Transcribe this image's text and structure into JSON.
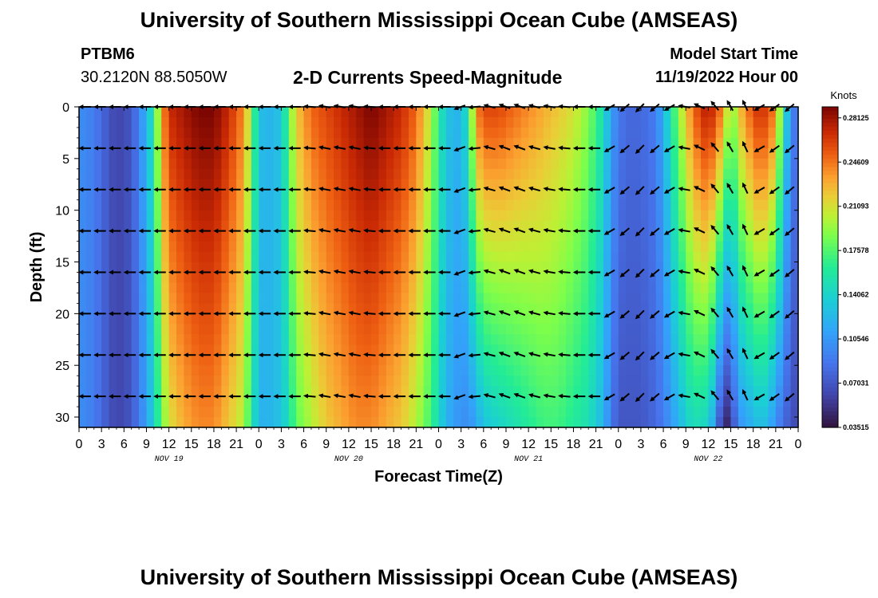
{
  "header": {
    "title": "University of Southern Mississippi Ocean Cube (AMSEAS)",
    "station_id": "PTBM6",
    "station_coords": "30.2120N  88.5050W",
    "chart_title": "2-D Currents Speed-Magnitude",
    "model_start_label": "Model Start Time",
    "model_start_value": "11/19/2022 Hour 00"
  },
  "footer": {
    "title": "University of Southern Mississippi Ocean Cube (AMSEAS)"
  },
  "chart_data": {
    "type": "heatmap",
    "title": "2-D Currents Speed-Magnitude",
    "xlabel": "Forecast Time(Z)",
    "ylabel": "Depth (ft)",
    "xlim": [
      0,
      96
    ],
    "ylim": [
      31,
      0
    ],
    "x_tick_hours": [
      0,
      3,
      6,
      9,
      12,
      15,
      18,
      21,
      24,
      27,
      30,
      33,
      36,
      39,
      42,
      45,
      48,
      51,
      54,
      57,
      60,
      63,
      66,
      69,
      72,
      75,
      78,
      81,
      84,
      87,
      90,
      93,
      96
    ],
    "x_tick_labels": [
      "0",
      "3",
      "6",
      "9",
      "12",
      "15",
      "18",
      "21",
      "0",
      "3",
      "6",
      "9",
      "12",
      "15",
      "18",
      "21",
      "0",
      "3",
      "6",
      "9",
      "12",
      "15",
      "18",
      "21",
      "0",
      "3",
      "6",
      "9",
      "12",
      "15",
      "18",
      "21",
      "0"
    ],
    "day_labels": [
      {
        "hour": 12,
        "label": "NOV 19"
      },
      {
        "hour": 36,
        "label": "NOV 20"
      },
      {
        "hour": 60,
        "label": "NOV 21"
      },
      {
        "hour": 84,
        "label": "NOV 22"
      }
    ],
    "y_ticks": [
      0,
      5,
      10,
      15,
      20,
      25,
      30
    ],
    "colorbar": {
      "unit": "Knots",
      "min": 0.03515,
      "max": 0.29,
      "tick_values": [
        0.28125,
        0.24609,
        0.21093,
        0.17578,
        0.14062,
        0.10546,
        0.07031,
        0.03515
      ],
      "tick_labels": [
        "0.28125",
        "0.24609",
        "0.21093",
        "0.17578",
        "0.14062",
        "0.10546",
        "0.07031",
        "0.03515"
      ]
    },
    "speed_profile": {
      "hours": [
        0,
        2,
        4,
        5,
        7,
        9,
        10,
        11,
        12,
        14,
        16,
        18,
        20,
        22,
        23,
        24,
        25,
        27,
        28,
        29,
        31,
        33,
        35,
        37,
        39,
        41,
        43,
        45,
        47,
        49,
        51,
        52,
        53,
        54,
        56,
        58,
        60,
        62,
        64,
        66,
        68,
        70,
        71,
        72,
        73,
        75,
        77,
        78,
        80,
        82,
        84,
        85,
        86,
        87,
        88,
        90,
        91,
        92,
        93,
        94,
        95,
        96
      ],
      "surface": [
        0.1,
        0.09,
        0.07,
        0.06,
        0.07,
        0.12,
        0.16,
        0.23,
        0.27,
        0.28,
        0.29,
        0.29,
        0.27,
        0.24,
        0.19,
        0.13,
        0.12,
        0.13,
        0.18,
        0.22,
        0.25,
        0.26,
        0.27,
        0.28,
        0.29,
        0.28,
        0.27,
        0.25,
        0.2,
        0.13,
        0.12,
        0.16,
        0.24,
        0.26,
        0.26,
        0.25,
        0.24,
        0.23,
        0.22,
        0.21,
        0.19,
        0.15,
        0.11,
        0.09,
        0.08,
        0.08,
        0.09,
        0.12,
        0.19,
        0.25,
        0.28,
        0.26,
        0.24,
        0.18,
        0.22,
        0.26,
        0.27,
        0.26,
        0.24,
        0.16,
        0.1,
        0.08
      ],
      "bottom": [
        0.1,
        0.09,
        0.07,
        0.06,
        0.07,
        0.11,
        0.14,
        0.18,
        0.21,
        0.23,
        0.24,
        0.24,
        0.22,
        0.2,
        0.16,
        0.12,
        0.12,
        0.13,
        0.15,
        0.18,
        0.2,
        0.22,
        0.23,
        0.24,
        0.24,
        0.23,
        0.22,
        0.2,
        0.17,
        0.12,
        0.1,
        0.1,
        0.11,
        0.13,
        0.14,
        0.15,
        0.16,
        0.17,
        0.17,
        0.16,
        0.15,
        0.12,
        0.09,
        0.07,
        0.07,
        0.07,
        0.08,
        0.09,
        0.12,
        0.15,
        0.14,
        0.1,
        0.04,
        0.05,
        0.1,
        0.12,
        0.13,
        0.12,
        0.1,
        0.08,
        0.07,
        0.06
      ]
    },
    "vectors": {
      "hours": [
        1,
        3,
        5,
        7,
        9,
        11,
        13,
        15,
        17,
        19,
        21,
        23,
        25,
        27,
        29,
        31,
        33,
        35,
        37,
        39,
        41,
        43,
        45,
        47,
        49,
        51,
        53,
        55,
        57,
        59,
        61,
        63,
        65,
        67,
        69,
        71,
        73,
        75,
        77,
        79,
        81,
        83,
        85,
        87,
        89,
        91,
        93,
        95
      ],
      "depths": [
        0,
        4,
        8,
        12,
        16,
        20,
        24,
        28
      ],
      "direction_deg": [
        180,
        180,
        180,
        180,
        180,
        180,
        180,
        180,
        180,
        180,
        180,
        180,
        180,
        180,
        180,
        185,
        190,
        190,
        190,
        185,
        180,
        180,
        180,
        180,
        180,
        160,
        175,
        195,
        200,
        200,
        195,
        190,
        185,
        180,
        180,
        150,
        140,
        135,
        140,
        150,
        190,
        205,
        230,
        240,
        245,
        150,
        145,
        140
      ],
      "note": "direction in screen degrees (0 = east, 90 = south); most currents flow westward"
    }
  }
}
